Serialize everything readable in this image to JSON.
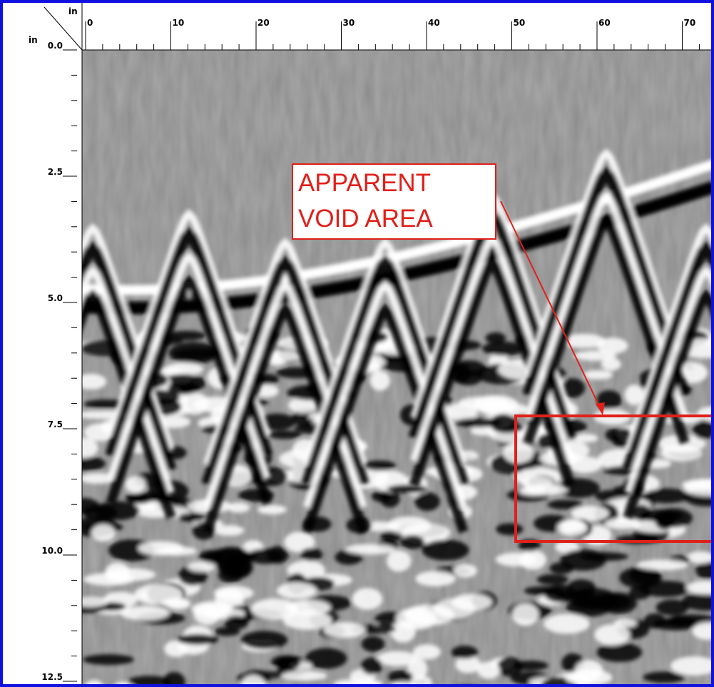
{
  "x_axis": {
    "unit": "in",
    "ticks": [
      0,
      10,
      20,
      30,
      40,
      50,
      60,
      70
    ]
  },
  "y_axis": {
    "unit": "in",
    "ticks": [
      "0.0",
      "2.5",
      "5.0",
      "7.5",
      "10.0",
      "12.5"
    ]
  },
  "annotation": {
    "lines": [
      "APPARENT",
      "VOID AREA"
    ]
  }
}
